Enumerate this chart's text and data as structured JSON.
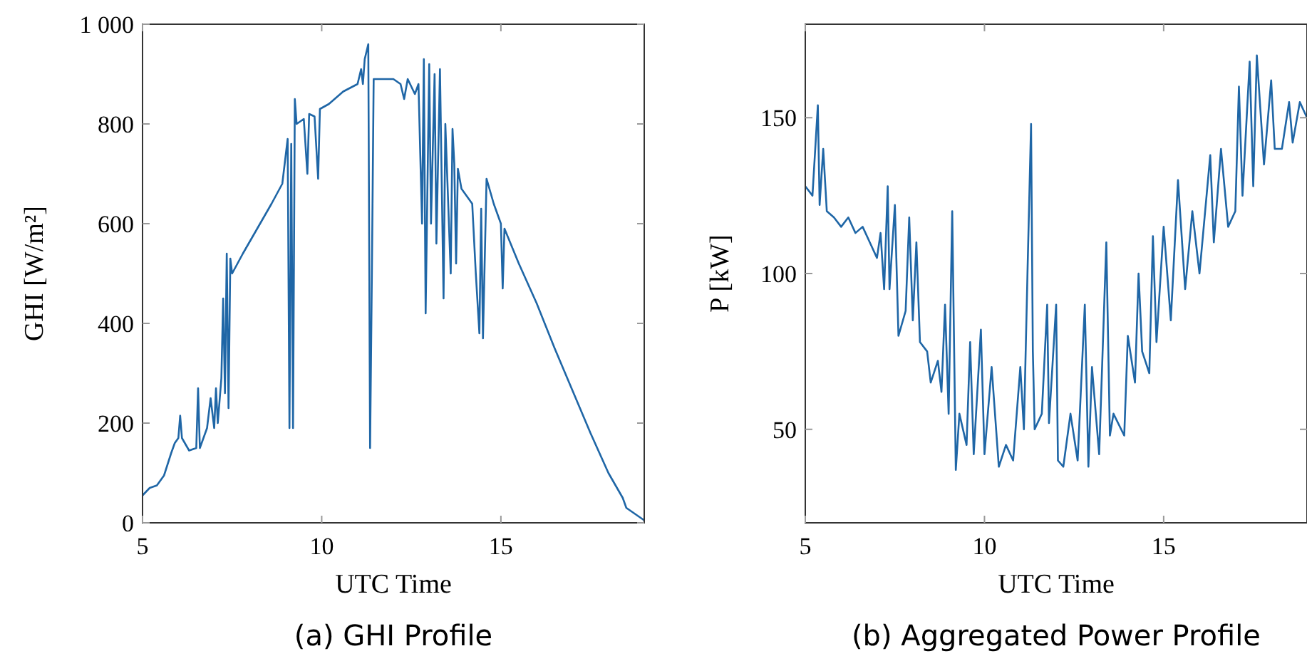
{
  "chart_data": [
    {
      "type": "line",
      "title": "(a) GHI Profile",
      "xlabel": "UTC Time",
      "ylabel": "GHI [W/m²]",
      "xlim": [
        5,
        19
      ],
      "ylim": [
        0,
        1000
      ],
      "xticks": [
        5,
        10,
        15
      ],
      "yticks": [
        0,
        200,
        400,
        600,
        800,
        {
          "value": 1000,
          "label": "1 000"
        }
      ],
      "grid": false,
      "line_style": "solid",
      "marker": "none",
      "series": [
        {
          "color": "#1f66a6",
          "x": [
            5.0,
            5.2,
            5.4,
            5.6,
            5.8,
            5.9,
            6.0,
            6.05,
            6.1,
            6.3,
            6.5,
            6.55,
            6.6,
            6.8,
            6.9,
            7.0,
            7.05,
            7.1,
            7.2,
            7.25,
            7.3,
            7.35,
            7.4,
            7.45,
            7.5,
            7.8,
            8.2,
            8.6,
            8.9,
            9.0,
            9.05,
            9.1,
            9.15,
            9.2,
            9.25,
            9.3,
            9.5,
            9.6,
            9.65,
            9.8,
            9.9,
            9.95,
            10.2,
            10.6,
            11.0,
            11.1,
            11.15,
            11.2,
            11.3,
            11.35,
            11.4,
            11.45,
            11.7,
            12.0,
            12.2,
            12.3,
            12.4,
            12.6,
            12.7,
            12.8,
            12.85,
            12.9,
            13.0,
            13.05,
            13.15,
            13.2,
            13.3,
            13.4,
            13.45,
            13.6,
            13.65,
            13.7,
            13.75,
            13.8,
            13.9,
            14.2,
            14.3,
            14.4,
            14.45,
            14.5,
            14.6,
            14.8,
            15.0,
            15.05,
            15.1,
            15.5,
            16.0,
            16.5,
            17.0,
            17.5,
            18.0,
            18.4,
            18.5,
            18.8,
            19.0
          ],
          "values": [
            55,
            70,
            75,
            95,
            140,
            160,
            170,
            215,
            170,
            145,
            150,
            270,
            150,
            190,
            250,
            190,
            270,
            200,
            290,
            450,
            260,
            540,
            230,
            530,
            500,
            540,
            590,
            640,
            680,
            740,
            770,
            190,
            760,
            190,
            850,
            800,
            810,
            700,
            820,
            815,
            690,
            830,
            840,
            865,
            880,
            910,
            880,
            930,
            960,
            150,
            500,
            890,
            890,
            890,
            880,
            850,
            890,
            860,
            880,
            600,
            930,
            420,
            920,
            600,
            900,
            560,
            910,
            450,
            800,
            500,
            790,
            720,
            520,
            710,
            670,
            640,
            500,
            380,
            630,
            370,
            690,
            640,
            600,
            470,
            590,
            520,
            440,
            350,
            265,
            180,
            100,
            50,
            30,
            15,
            5
          ]
        }
      ]
    },
    {
      "type": "line",
      "title": "(b) Aggregated Power Profile",
      "xlabel": "UTC Time",
      "ylabel": "P [kW]",
      "xlim": [
        5,
        19
      ],
      "ylim": [
        20,
        180
      ],
      "xticks": [
        5,
        10,
        15
      ],
      "yticks": [
        50,
        100,
        150
      ],
      "grid": false,
      "line_style": "solid",
      "marker": "none",
      "series": [
        {
          "color": "#1f66a6",
          "x": [
            5.0,
            5.2,
            5.35,
            5.4,
            5.5,
            5.6,
            5.8,
            6.0,
            6.2,
            6.4,
            6.6,
            6.8,
            7.0,
            7.1,
            7.2,
            7.3,
            7.35,
            7.5,
            7.6,
            7.8,
            7.9,
            8.0,
            8.1,
            8.2,
            8.4,
            8.5,
            8.7,
            8.8,
            8.9,
            9.0,
            9.1,
            9.2,
            9.3,
            9.5,
            9.6,
            9.7,
            9.9,
            10.0,
            10.2,
            10.4,
            10.6,
            10.8,
            11.0,
            11.1,
            11.2,
            11.3,
            11.35,
            11.4,
            11.6,
            11.75,
            11.8,
            12.0,
            12.05,
            12.2,
            12.4,
            12.6,
            12.8,
            12.9,
            13.0,
            13.2,
            13.4,
            13.5,
            13.6,
            13.9,
            14.0,
            14.2,
            14.3,
            14.4,
            14.6,
            14.7,
            14.8,
            15.0,
            15.2,
            15.4,
            15.6,
            15.8,
            16.0,
            16.3,
            16.4,
            16.6,
            16.8,
            17.0,
            17.1,
            17.2,
            17.4,
            17.5,
            17.6,
            17.8,
            18.0,
            18.1,
            18.3,
            18.5,
            18.6,
            18.8,
            19.0
          ],
          "values": [
            128,
            125,
            154,
            122,
            140,
            120,
            118,
            115,
            118,
            113,
            115,
            110,
            105,
            113,
            95,
            128,
            95,
            122,
            80,
            88,
            118,
            85,
            110,
            78,
            75,
            65,
            72,
            62,
            90,
            55,
            120,
            37,
            55,
            45,
            78,
            42,
            82,
            42,
            70,
            38,
            45,
            40,
            70,
            50,
            100,
            148,
            75,
            50,
            55,
            90,
            52,
            90,
            40,
            38,
            55,
            40,
            90,
            38,
            70,
            42,
            110,
            48,
            55,
            48,
            80,
            65,
            100,
            75,
            68,
            112,
            78,
            115,
            85,
            130,
            95,
            120,
            100,
            138,
            110,
            140,
            115,
            120,
            160,
            125,
            168,
            128,
            170,
            135,
            162,
            140,
            140,
            155,
            142,
            155,
            150
          ]
        }
      ]
    }
  ]
}
